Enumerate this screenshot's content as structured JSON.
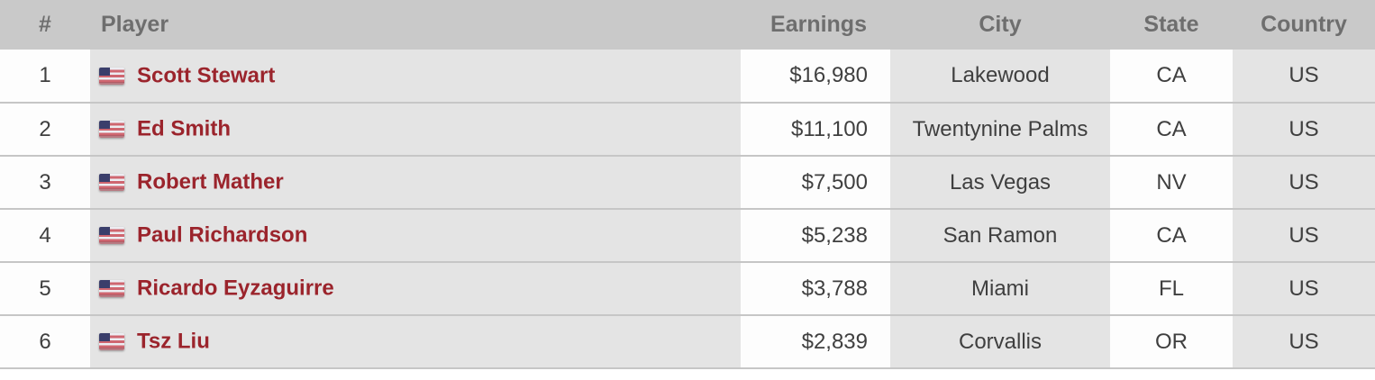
{
  "table": {
    "columns": [
      {
        "key": "rank",
        "label": "#"
      },
      {
        "key": "player",
        "label": "Player"
      },
      {
        "key": "earnings",
        "label": "Earnings"
      },
      {
        "key": "city",
        "label": "City"
      },
      {
        "key": "state",
        "label": "State"
      },
      {
        "key": "country",
        "label": "Country"
      }
    ],
    "rows": [
      {
        "rank": "1",
        "flag_icon": "us-flag",
        "player": "Scott Stewart",
        "earnings": "$16,980",
        "city": "Lakewood",
        "state": "CA",
        "country": "US"
      },
      {
        "rank": "2",
        "flag_icon": "us-flag",
        "player": "Ed Smith",
        "earnings": "$11,100",
        "city": "Twentynine Palms",
        "state": "CA",
        "country": "US"
      },
      {
        "rank": "3",
        "flag_icon": "us-flag",
        "player": "Robert Mather",
        "earnings": "$7,500",
        "city": "Las Vegas",
        "state": "NV",
        "country": "US"
      },
      {
        "rank": "4",
        "flag_icon": "us-flag",
        "player": "Paul Richardson",
        "earnings": "$5,238",
        "city": "San Ramon",
        "state": "CA",
        "country": "US"
      },
      {
        "rank": "5",
        "flag_icon": "us-flag",
        "player": "Ricardo Eyzaguirre",
        "earnings": "$3,788",
        "city": "Miami",
        "state": "FL",
        "country": "US"
      },
      {
        "rank": "6",
        "flag_icon": "us-flag",
        "player": "Tsz Liu",
        "earnings": "$2,839",
        "city": "Corvallis",
        "state": "OR",
        "country": "US"
      }
    ]
  },
  "colors": {
    "header_bg": "#c9c9c9",
    "header_text": "#6e6e6e",
    "cell_gray": "#e4e4e4",
    "cell_white": "#fdfdfd",
    "divider": "#c6c6c6",
    "body_text": "#3f3f3f",
    "player_link_red": "#9b242c",
    "flag_red": "#cf6670",
    "flag_blue": "#3a3e6b"
  }
}
